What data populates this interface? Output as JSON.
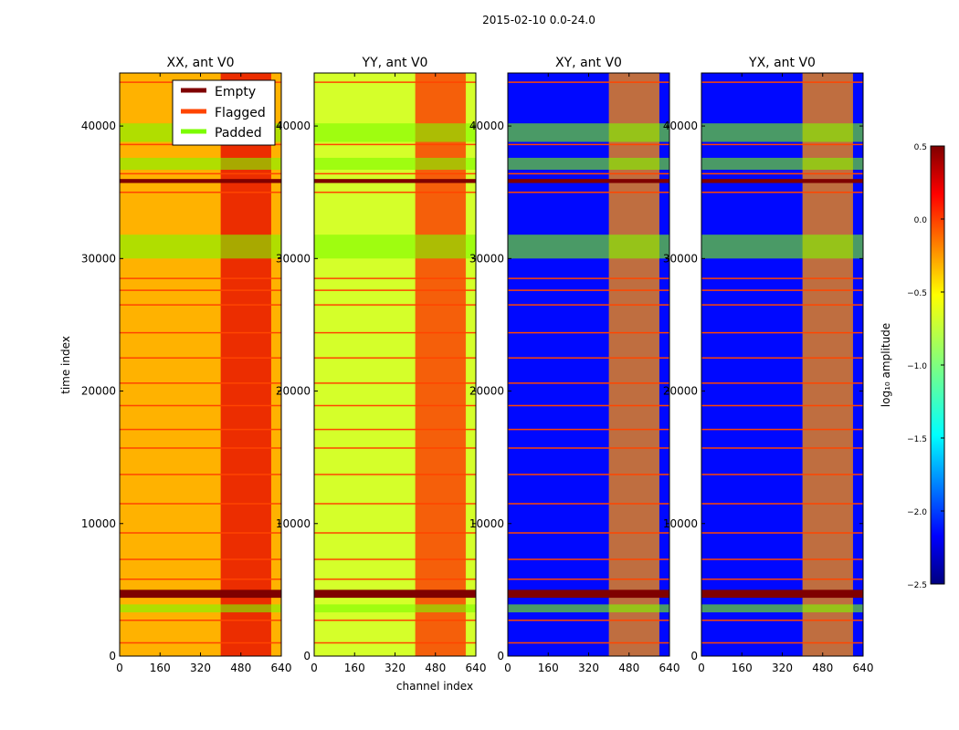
{
  "figure": {
    "suptitle": "2015-02-10 0.0-24.0",
    "xlabel": "channel index",
    "ylabel": "time index"
  },
  "legend": {
    "entries": [
      {
        "label": "Empty",
        "color": "#7f0000"
      },
      {
        "label": "Flagged",
        "color": "#ff4500"
      },
      {
        "label": "Padded",
        "color": "#7cfc00"
      }
    ]
  },
  "colorbar": {
    "label": "log₁₀ amplitude",
    "range": [
      -2.5,
      0.5
    ],
    "ticks": [
      0.5,
      0.0,
      -0.5,
      -1.0,
      -1.5,
      -2.0,
      -2.5
    ],
    "tick_labels": [
      "0.5",
      "0.0",
      "−0.5",
      "−1.0",
      "−1.5",
      "−2.0",
      "−2.5"
    ],
    "colormap": "jet"
  },
  "chart_data": {
    "type": "heatmap",
    "x_range": [
      0,
      640
    ],
    "y_range": [
      0,
      44000
    ],
    "x_ticks": [
      0,
      160,
      320,
      480,
      640
    ],
    "x_tick_labels": [
      "0",
      "160",
      "320",
      "480",
      "640"
    ],
    "y_ticks": [
      0,
      10000,
      20000,
      30000,
      40000
    ],
    "y_tick_labels": [
      "0",
      "10000",
      "20000",
      "30000",
      "40000"
    ],
    "panels": [
      {
        "title": "XX, ant V0",
        "background_level": -0.4,
        "rfi_level": 0.2
      },
      {
        "title": "YY, ant V0",
        "background_level": -0.75,
        "rfi_level": 0.0
      },
      {
        "title": "XY, ant V0",
        "background_level": -2.1,
        "rfi_level": -0.3
      },
      {
        "title": "YX, ant V0",
        "background_level": -2.1,
        "rfi_level": -0.3
      }
    ],
    "padded_intervals": [
      [
        3300,
        3900
      ],
      [
        30000,
        31800
      ],
      [
        36700,
        37600
      ],
      [
        38800,
        40200
      ]
    ],
    "empty_intervals": [
      [
        4400,
        5000
      ],
      [
        35700,
        36000
      ]
    ],
    "flagged_rows": [
      1000,
      2700,
      5800,
      7300,
      9300,
      11500,
      13700,
      15700,
      17100,
      18900,
      20600,
      22500,
      24400,
      26500,
      27600,
      28500,
      35000,
      36400,
      38600,
      43300
    ],
    "rfi_channel_band": [
      400,
      600
    ]
  }
}
